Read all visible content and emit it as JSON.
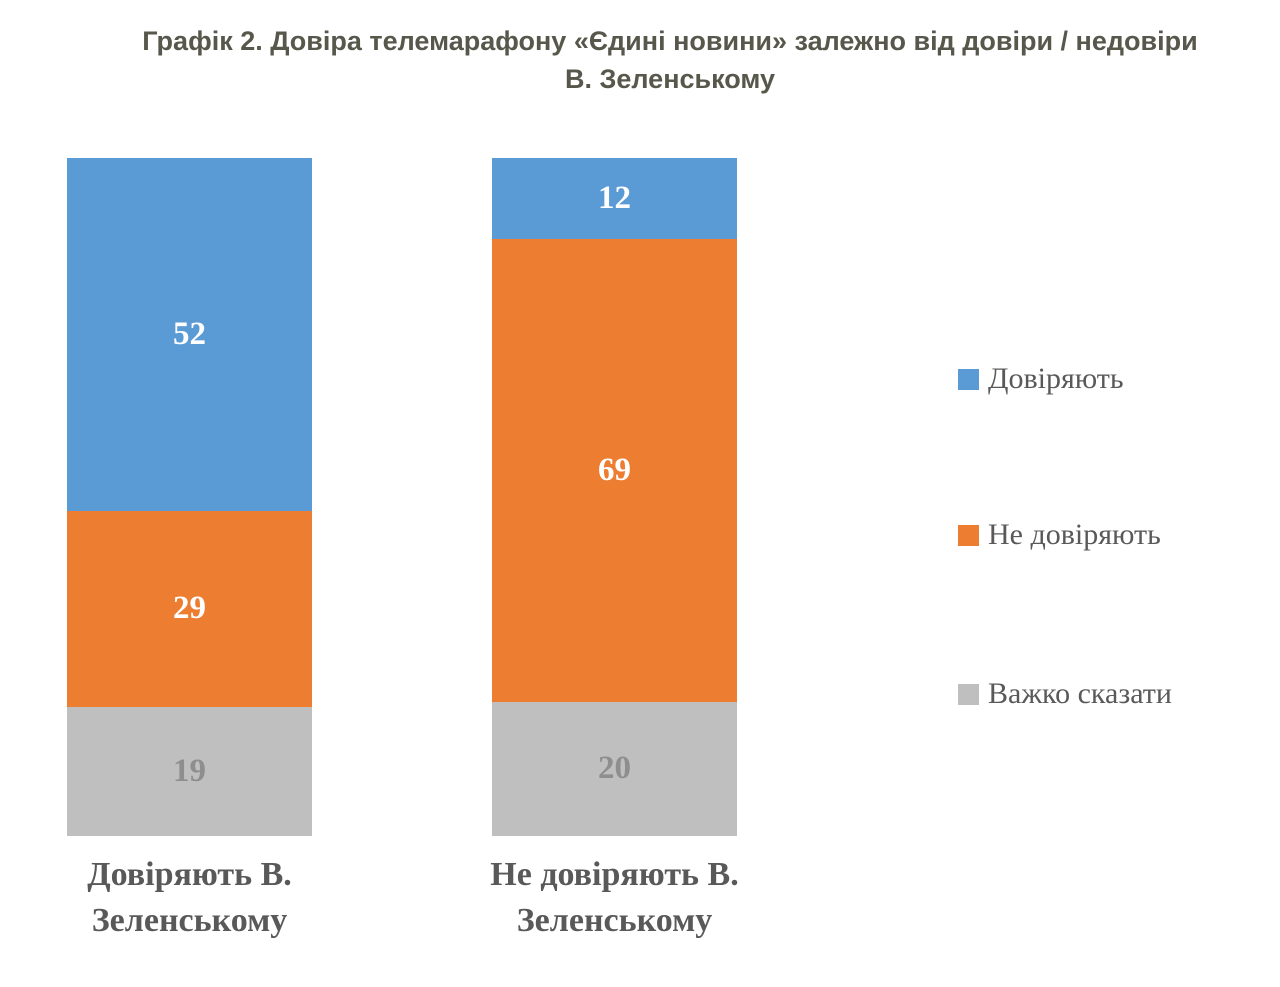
{
  "title": {
    "lines": [
      "Графік 2. Довіра телемарафону «Єдині новини» залежно від довіри / недовіри",
      "В. Зеленському"
    ],
    "full": "Графік 2. Довіра телемарафону «Єдині новини» залежно від довіри / недовіри В. Зеленському"
  },
  "chart_data": {
    "type": "bar",
    "variant": "stacked-column",
    "title": "Графік 2. Довіра телемарафону «Єдині новини» залежно від довіри / недовіри В. Зеленському",
    "units": "percent",
    "categories": [
      "Довіряють В. Зеленському",
      "Не довіряють В. Зеленському"
    ],
    "series": [
      {
        "name": "Довіряють",
        "color": "#5B9BD5",
        "label_color": "#FFFFFF",
        "values": [
          52,
          12
        ]
      },
      {
        "name": "Не довіряють",
        "color": "#ED7D31",
        "label_color": "#FFFFFF",
        "values": [
          29,
          69
        ]
      },
      {
        "name": "Важко сказати",
        "color": "#BFBFBF",
        "label_color": "#8E8E8E",
        "values": [
          19,
          20
        ]
      }
    ],
    "legend": {
      "position": "right",
      "items": [
        "Довіряють",
        "Не довіряють",
        "Важко сказати"
      ]
    },
    "axes": {
      "x_visible": false,
      "y_visible": false,
      "gridlines": false
    }
  },
  "styles": {
    "background": "#FFFFFF",
    "title_color": "#57574B",
    "text_color": "#595959"
  }
}
